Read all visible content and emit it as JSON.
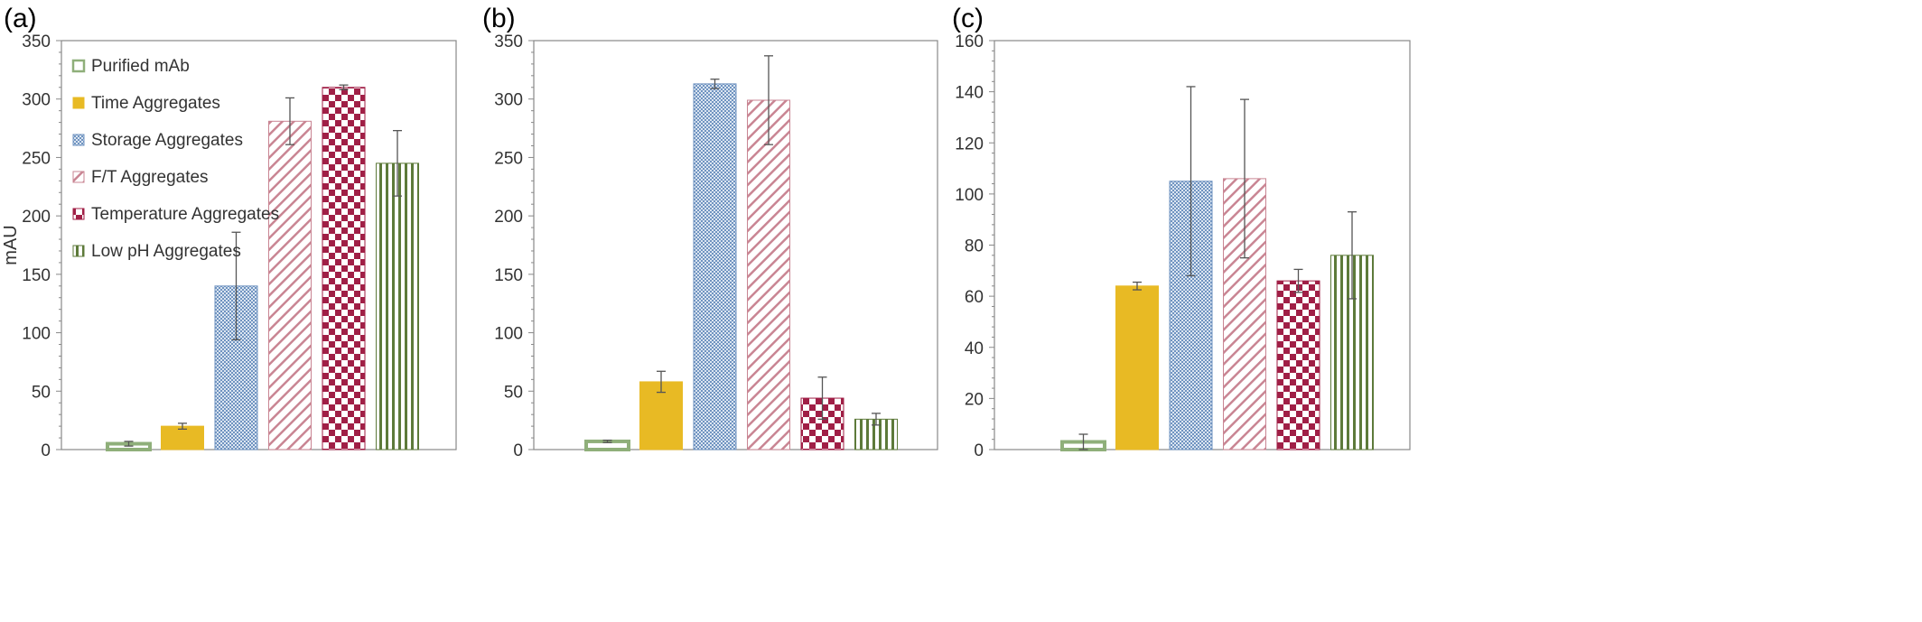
{
  "colors": {
    "purified": "#8faf7a",
    "time": "#e8ba24",
    "storage": "#6f93c0",
    "ft": "#c98593",
    "temperature": "#a01f46",
    "lowph": "#5d7a3a",
    "axis": "#888888",
    "errorbar": "#555555"
  },
  "legend": {
    "items": [
      {
        "label": "Purified mAb",
        "key": "purified"
      },
      {
        "label": "Time Aggregates",
        "key": "time"
      },
      {
        "label": "Storage Aggregates",
        "key": "storage"
      },
      {
        "label": "F/T Aggregates",
        "key": "ft"
      },
      {
        "label": "Temperature Aggregates",
        "key": "temperature"
      },
      {
        "label": "Low pH Aggregates",
        "key": "lowph"
      }
    ]
  },
  "chart_data": [
    {
      "type": "bar",
      "panel_label": "(a)",
      "ylabel": "mAU",
      "ylim": [
        0,
        350
      ],
      "yticks": [
        0,
        50,
        100,
        150,
        200,
        250,
        300,
        350
      ],
      "categories": [
        "Purified mAb",
        "Time Aggregates",
        "Storage Aggregates",
        "F/T Aggregates",
        "Temperature Aggregates",
        "Low pH Aggregates"
      ],
      "values": [
        5,
        20,
        140,
        281,
        310,
        245
      ],
      "errors": [
        2,
        2.5,
        46,
        20,
        2,
        28
      ],
      "legend": "top-left"
    },
    {
      "type": "bar",
      "panel_label": "(b)",
      "ylabel": "",
      "ylim": [
        0,
        350
      ],
      "yticks": [
        0,
        50,
        100,
        150,
        200,
        250,
        300,
        350
      ],
      "categories": [
        "Purified mAb",
        "Time Aggregates",
        "Storage Aggregates",
        "F/T Aggregates",
        "Temperature Aggregates",
        "Low pH Aggregates"
      ],
      "values": [
        7,
        58,
        313,
        299,
        44,
        26
      ],
      "errors": [
        1,
        9,
        4,
        38,
        18,
        5
      ]
    },
    {
      "type": "bar",
      "panel_label": "(c)",
      "ylabel": "",
      "ylim": [
        0,
        160
      ],
      "yticks": [
        0,
        20,
        40,
        60,
        80,
        100,
        120,
        140,
        160
      ],
      "categories": [
        "Purified mAb",
        "Time Aggregates",
        "Storage Aggregates",
        "F/T Aggregates",
        "Temperature Aggregates",
        "Low pH Aggregates"
      ],
      "values": [
        3,
        64,
        105,
        106,
        66,
        76
      ],
      "errors": [
        3,
        1.5,
        37,
        31,
        4.5,
        17
      ]
    }
  ]
}
